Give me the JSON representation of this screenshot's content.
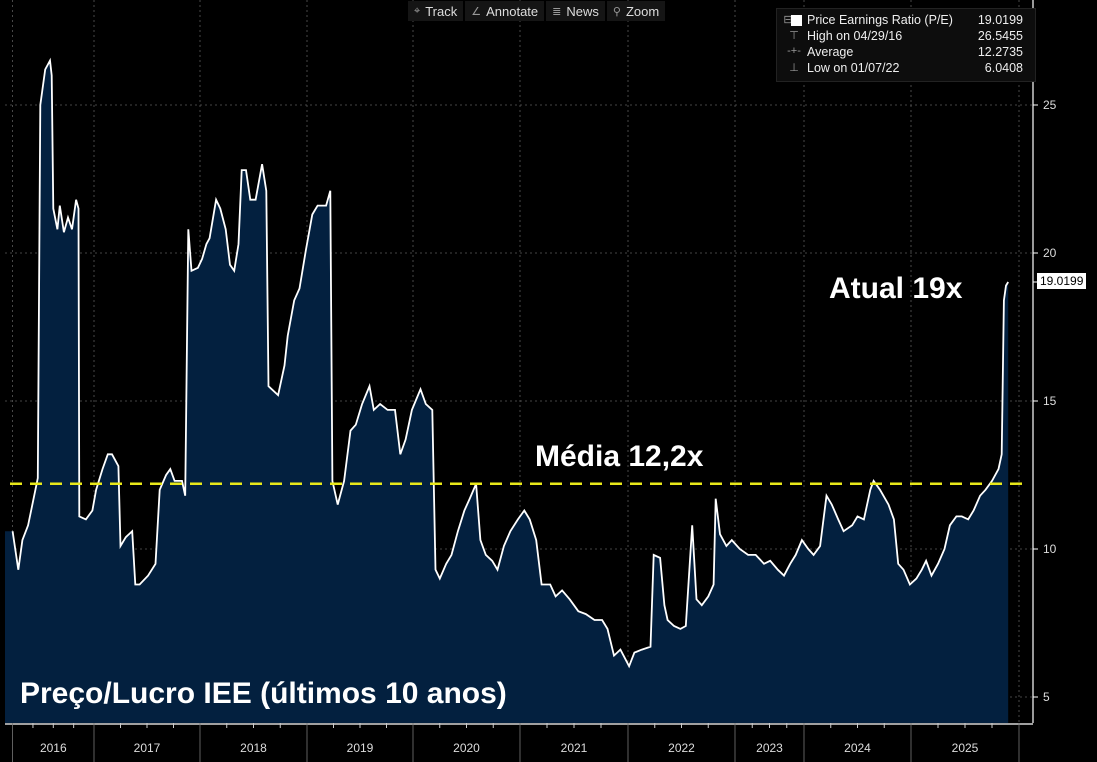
{
  "toolbar": {
    "track": "Track",
    "annotate": "Annotate",
    "news": "News",
    "zoom": "Zoom"
  },
  "legend": {
    "series": {
      "label": "Price Earnings Ratio (P/E)",
      "value": "19.0199"
    },
    "high": {
      "label": "High on 04/29/16",
      "value": "26.5455"
    },
    "average": {
      "label": "Average",
      "value": "12.2735"
    },
    "low": {
      "label": "Low on 01/07/22",
      "value": "6.0408"
    }
  },
  "annotations": {
    "current": "Atual 19x",
    "average": "Média 12,2x",
    "title": "Preço/Lucro IEE (últimos 10 anos)"
  },
  "last_value_label": "19.0199",
  "colors": {
    "fill": "#03203f",
    "line": "#ffffff",
    "average": "#e8e81a",
    "grid": "#5a5a5a"
  },
  "chart_data": {
    "type": "area",
    "title": "Preço/Lucro IEE (últimos 10 anos)",
    "series_name": "Price Earnings Ratio (P/E)",
    "ylim": [
      4,
      29
    ],
    "yticks": [
      "5",
      "10",
      "15",
      "20",
      "25"
    ],
    "xticks": [
      "2016",
      "2017",
      "2018",
      "2019",
      "2020",
      "2021",
      "2022",
      "2023",
      "2024",
      "2025"
    ],
    "average": 12.2735,
    "grid": true,
    "legend_position": "top-right",
    "points": [
      [
        2016.0,
        10.6
      ],
      [
        2016.07,
        9.3
      ],
      [
        2016.12,
        10.3
      ],
      [
        2016.19,
        10.8
      ],
      [
        2016.28,
        12.0
      ],
      [
        2016.31,
        12.4
      ],
      [
        2016.34,
        25.0
      ],
      [
        2016.4,
        26.2
      ],
      [
        2016.46,
        26.5
      ],
      [
        2016.48,
        26.0
      ],
      [
        2016.5,
        21.5
      ],
      [
        2016.55,
        20.8
      ],
      [
        2016.58,
        21.6
      ],
      [
        2016.63,
        20.7
      ],
      [
        2016.68,
        21.2
      ],
      [
        2016.73,
        20.8
      ],
      [
        2016.78,
        21.8
      ],
      [
        2016.81,
        21.5
      ],
      [
        2016.82,
        11.1
      ],
      [
        2016.9,
        11.0
      ],
      [
        2016.98,
        11.3
      ],
      [
        2017.02,
        12.0
      ],
      [
        2017.08,
        12.7
      ],
      [
        2017.13,
        13.2
      ],
      [
        2017.17,
        13.2
      ],
      [
        2017.23,
        12.8
      ],
      [
        2017.25,
        10.1
      ],
      [
        2017.3,
        10.4
      ],
      [
        2017.36,
        10.6
      ],
      [
        2017.39,
        8.8
      ],
      [
        2017.43,
        8.8
      ],
      [
        2017.51,
        9.1
      ],
      [
        2017.58,
        9.5
      ],
      [
        2017.62,
        12.0
      ],
      [
        2017.68,
        12.5
      ],
      [
        2017.72,
        12.7
      ],
      [
        2017.76,
        12.3
      ],
      [
        2017.83,
        12.3
      ],
      [
        2017.86,
        11.8
      ],
      [
        2017.89,
        20.8
      ],
      [
        2017.92,
        19.4
      ],
      [
        2017.98,
        19.5
      ],
      [
        2018.02,
        19.8
      ],
      [
        2018.06,
        20.3
      ],
      [
        2018.09,
        20.5
      ],
      [
        2018.15,
        21.8
      ],
      [
        2018.19,
        21.5
      ],
      [
        2018.24,
        20.8
      ],
      [
        2018.28,
        19.6
      ],
      [
        2018.32,
        19.4
      ],
      [
        2018.36,
        20.3
      ],
      [
        2018.39,
        22.8
      ],
      [
        2018.43,
        22.8
      ],
      [
        2018.47,
        21.8
      ],
      [
        2018.52,
        21.8
      ],
      [
        2018.58,
        23.0
      ],
      [
        2018.62,
        22.1
      ],
      [
        2018.64,
        15.5
      ],
      [
        2018.67,
        15.4
      ],
      [
        2018.73,
        15.2
      ],
      [
        2018.79,
        16.2
      ],
      [
        2018.82,
        17.2
      ],
      [
        2018.88,
        18.4
      ],
      [
        2018.93,
        18.8
      ],
      [
        2018.99,
        20.1
      ],
      [
        2019.05,
        21.3
      ],
      [
        2019.1,
        21.6
      ],
      [
        2019.18,
        21.6
      ],
      [
        2019.22,
        22.1
      ],
      [
        2019.24,
        12.3
      ],
      [
        2019.29,
        11.5
      ],
      [
        2019.35,
        12.3
      ],
      [
        2019.41,
        14.0
      ],
      [
        2019.46,
        14.2
      ],
      [
        2019.52,
        14.9
      ],
      [
        2019.59,
        15.5
      ],
      [
        2019.63,
        14.7
      ],
      [
        2019.69,
        14.9
      ],
      [
        2019.76,
        14.7
      ],
      [
        2019.83,
        14.7
      ],
      [
        2019.88,
        13.2
      ],
      [
        2019.93,
        13.7
      ],
      [
        2019.99,
        14.7
      ],
      [
        2020.07,
        15.4
      ],
      [
        2020.12,
        14.9
      ],
      [
        2020.18,
        14.7
      ],
      [
        2020.21,
        9.3
      ],
      [
        2020.25,
        9.0
      ],
      [
        2020.31,
        9.5
      ],
      [
        2020.36,
        9.8
      ],
      [
        2020.42,
        10.6
      ],
      [
        2020.48,
        11.3
      ],
      [
        2020.53,
        11.7
      ],
      [
        2020.59,
        12.2
      ],
      [
        2020.63,
        10.3
      ],
      [
        2020.68,
        9.8
      ],
      [
        2020.74,
        9.6
      ],
      [
        2020.79,
        9.3
      ],
      [
        2020.85,
        10.1
      ],
      [
        2020.91,
        10.6
      ],
      [
        2020.98,
        11.0
      ],
      [
        2021.04,
        11.3
      ],
      [
        2021.09,
        11.0
      ],
      [
        2021.15,
        10.3
      ],
      [
        2021.2,
        8.8
      ],
      [
        2021.28,
        8.8
      ],
      [
        2021.33,
        8.4
      ],
      [
        2021.39,
        8.6
      ],
      [
        2021.46,
        8.3
      ],
      [
        2021.54,
        7.9
      ],
      [
        2021.61,
        7.8
      ],
      [
        2021.69,
        7.6
      ],
      [
        2021.76,
        7.6
      ],
      [
        2021.81,
        7.3
      ],
      [
        2021.87,
        6.4
      ],
      [
        2021.93,
        6.6
      ],
      [
        2022.01,
        6.04
      ],
      [
        2022.06,
        6.5
      ],
      [
        2022.13,
        6.6
      ],
      [
        2022.21,
        6.7
      ],
      [
        2022.24,
        9.8
      ],
      [
        2022.3,
        9.7
      ],
      [
        2022.34,
        8.1
      ],
      [
        2022.37,
        7.6
      ],
      [
        2022.43,
        7.4
      ],
      [
        2022.49,
        7.3
      ],
      [
        2022.54,
        7.4
      ],
      [
        2022.6,
        10.8
      ],
      [
        2022.64,
        8.3
      ],
      [
        2022.69,
        8.1
      ],
      [
        2022.75,
        8.4
      ],
      [
        2022.8,
        8.8
      ],
      [
        2022.82,
        11.7
      ],
      [
        2022.86,
        10.5
      ],
      [
        2022.92,
        10.1
      ],
      [
        2022.97,
        10.3
      ],
      [
        2023.07,
        10.0
      ],
      [
        2023.19,
        9.8
      ],
      [
        2023.3,
        9.8
      ],
      [
        2023.42,
        9.5
      ],
      [
        2023.51,
        9.6
      ],
      [
        2023.62,
        9.3
      ],
      [
        2023.71,
        9.1
      ],
      [
        2023.8,
        9.5
      ],
      [
        2023.88,
        9.8
      ],
      [
        2023.97,
        10.3
      ],
      [
        2024.04,
        10.0
      ],
      [
        2024.09,
        9.8
      ],
      [
        2024.15,
        10.1
      ],
      [
        2024.21,
        11.8
      ],
      [
        2024.26,
        11.5
      ],
      [
        2024.32,
        11.0
      ],
      [
        2024.37,
        10.6
      ],
      [
        2024.45,
        10.8
      ],
      [
        2024.5,
        11.1
      ],
      [
        2024.56,
        11.0
      ],
      [
        2024.62,
        12.0
      ],
      [
        2024.65,
        12.3
      ],
      [
        2024.71,
        12.0
      ],
      [
        2024.79,
        11.5
      ],
      [
        2024.84,
        11.0
      ],
      [
        2024.88,
        9.5
      ],
      [
        2024.93,
        9.3
      ],
      [
        2024.99,
        8.8
      ],
      [
        2025.05,
        9.0
      ],
      [
        2025.1,
        9.3
      ],
      [
        2025.14,
        9.6
      ],
      [
        2025.19,
        9.1
      ],
      [
        2025.25,
        9.5
      ],
      [
        2025.31,
        10.0
      ],
      [
        2025.36,
        10.8
      ],
      [
        2025.42,
        11.1
      ],
      [
        2025.47,
        11.1
      ],
      [
        2025.53,
        11.0
      ],
      [
        2025.58,
        11.3
      ],
      [
        2025.64,
        11.8
      ],
      [
        2025.69,
        12.0
      ],
      [
        2025.75,
        12.3
      ],
      [
        2025.81,
        12.7
      ],
      [
        2025.84,
        13.2
      ],
      [
        2025.86,
        18.4
      ],
      [
        2025.88,
        18.9
      ],
      [
        2025.9,
        19.0199
      ]
    ]
  }
}
